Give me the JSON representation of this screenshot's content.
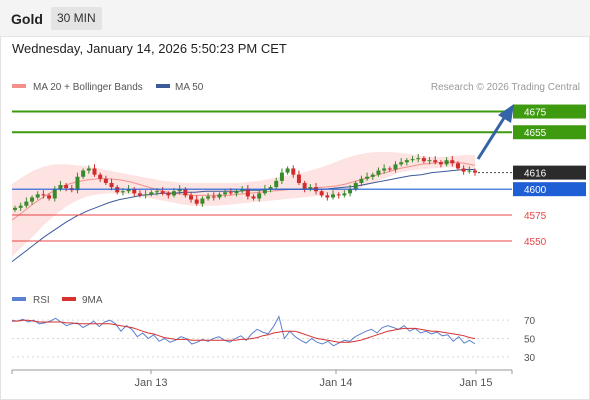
{
  "header": {
    "instrument": "Gold",
    "timeframe": "30 MIN"
  },
  "datetime": "Wednesday, January 14, 2026 5:50:23 PM CET",
  "legend": [
    {
      "label": "MA 20 + Bollinger Bands",
      "color": "#f4908c"
    },
    {
      "label": "MA 50",
      "color": "#3c5a99"
    }
  ],
  "credit": "Research © 2026 Trading Central",
  "colors": {
    "bull": "#3a8a2c",
    "bear": "#d22b2b",
    "support": "#1f5fd6",
    "target": "#3e9a0f",
    "resistance": "#e84545",
    "current": "#2b2b2b",
    "ma50": "#3c5a99",
    "ma20": "#f4908c",
    "band": "#fde3e1",
    "arrow": "#3463a6",
    "rsi": "#5b82d0",
    "rsi_ma": "#d93030"
  },
  "chart_data": [
    {
      "type": "candlestick",
      "x_labels": [
        "Jan 13",
        "Jan 14",
        "Jan 15"
      ],
      "ylim": [
        4520,
        4690
      ],
      "levels": [
        {
          "value": 4675,
          "label": "4675",
          "kind": "target"
        },
        {
          "value": 4655,
          "label": "4655",
          "kind": "target"
        },
        {
          "value": 4616,
          "label": "4616",
          "kind": "current"
        },
        {
          "value": 4600,
          "label": "4600",
          "kind": "support"
        },
        {
          "value": 4575,
          "label": "4575",
          "kind": "resistance-line"
        },
        {
          "value": 4550,
          "label": "4550",
          "kind": "resistance-line"
        }
      ],
      "close": [
        4582,
        4584,
        4588,
        4592,
        4595,
        4594,
        4591,
        4600,
        4604,
        4601,
        4599,
        4612,
        4618,
        4620,
        4614,
        4610,
        4606,
        4602,
        4597,
        4598,
        4600,
        4596,
        4594,
        4595,
        4597,
        4598,
        4596,
        4594,
        4598,
        4600,
        4594,
        4590,
        4586,
        4591,
        4593,
        4592,
        4595,
        4597,
        4596,
        4598,
        4600,
        4593,
        4591,
        4596,
        4600,
        4602,
        4608,
        4616,
        4620,
        4614,
        4606,
        4600,
        4602,
        4598,
        4594,
        4592,
        4595,
        4594,
        4596,
        4600,
        4606,
        4610,
        4612,
        4614,
        4618,
        4620,
        4619,
        4624,
        4626,
        4628,
        4629,
        4630,
        4627,
        4628,
        4626,
        4624,
        4628,
        4625,
        4620,
        4617,
        4618,
        4616
      ],
      "ma20": [
        4570,
        4578,
        4586,
        4593,
        4599,
        4604,
        4607,
        4609,
        4610,
        4610,
        4609,
        4607,
        4604,
        4601,
        4598,
        4596,
        4595,
        4594,
        4594,
        4594,
        4594,
        4595,
        4596,
        4597,
        4598,
        4599,
        4600,
        4600,
        4601,
        4602,
        4603,
        4605,
        4608,
        4611,
        4614,
        4617,
        4620,
        4622,
        4624,
        4625,
        4626,
        4626,
        4625,
        4623
      ],
      "ma50": [
        4530,
        4538,
        4546,
        4554,
        4561,
        4568,
        4574,
        4579,
        4583,
        4587,
        4590,
        4592,
        4594,
        4595,
        4596,
        4596,
        4597,
        4597,
        4598,
        4598,
        4598,
        4598,
        4599,
        4599,
        4600,
        4600,
        4600,
        4600,
        4600,
        4600,
        4601,
        4602,
        4603,
        4605,
        4607,
        4609,
        4611,
        4613,
        4614,
        4616,
        4617,
        4618,
        4619,
        4619
      ],
      "band_upper": [
        4605,
        4612,
        4618,
        4622,
        4624,
        4624,
        4623,
        4622,
        4620,
        4618,
        4616,
        4614,
        4612,
        4610,
        4608,
        4607,
        4606,
        4606,
        4606,
        4606,
        4606,
        4606,
        4607,
        4608,
        4610,
        4612,
        4614,
        4616,
        4619,
        4622,
        4626,
        4630,
        4633,
        4635,
        4636,
        4636,
        4635,
        4634,
        4632,
        4631,
        4631,
        4632,
        4633,
        4633
      ],
      "band_lower": [
        4535,
        4545,
        4555,
        4566,
        4575,
        4583,
        4589,
        4593,
        4595,
        4596,
        4596,
        4595,
        4593,
        4591,
        4589,
        4587,
        4585,
        4584,
        4584,
        4584,
        4585,
        4586,
        4587,
        4588,
        4589,
        4590,
        4591,
        4592,
        4593,
        4594,
        4595,
        4597,
        4600,
        4604,
        4608,
        4612,
        4616,
        4618,
        4619,
        4620,
        4621,
        4621,
        4620,
        4618
      ]
    },
    {
      "type": "line",
      "title": "RSI",
      "legend": [
        "RSI",
        "9MA"
      ],
      "y_ticks": [
        70,
        50,
        30
      ],
      "ylim": [
        20,
        80
      ],
      "rsi": [
        70,
        69,
        71,
        68,
        70,
        66,
        67,
        69,
        72,
        68,
        64,
        66,
        67,
        62,
        65,
        69,
        63,
        68,
        70,
        66,
        58,
        64,
        60,
        52,
        56,
        50,
        54,
        47,
        50,
        46,
        48,
        52,
        50,
        44,
        46,
        49,
        47,
        50,
        52,
        48,
        46,
        50,
        53,
        48,
        55,
        60,
        57,
        55,
        63,
        74,
        50,
        58,
        52,
        48,
        45,
        50,
        46,
        44,
        47,
        42,
        45,
        48,
        47,
        52,
        55,
        58,
        60,
        56,
        62,
        64,
        62,
        60,
        64,
        58,
        61,
        56,
        58,
        55,
        57,
        53,
        54,
        47,
        52,
        45,
        48,
        44
      ],
      "ma9": [
        69,
        69,
        70,
        70,
        69,
        68,
        68,
        68,
        68,
        68,
        67,
        67,
        66,
        66,
        66,
        66,
        66,
        66,
        66,
        65,
        64,
        63,
        62,
        60,
        58,
        56,
        55,
        53,
        51,
        50,
        49,
        49,
        49,
        48,
        48,
        48,
        48,
        48,
        48,
        48,
        48,
        48,
        49,
        49,
        50,
        51,
        53,
        54,
        56,
        57,
        58,
        58,
        58,
        56,
        54,
        52,
        50,
        49,
        48,
        47,
        46,
        46,
        46,
        47,
        48,
        50,
        52,
        54,
        56,
        58,
        59,
        60,
        61,
        61,
        61,
        60,
        59,
        58,
        58,
        57,
        56,
        55,
        54,
        53,
        51,
        50
      ]
    }
  ]
}
